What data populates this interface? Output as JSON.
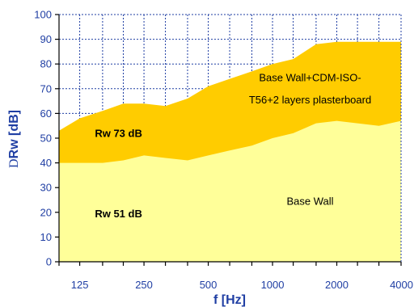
{
  "chart_data": {
    "type": "area",
    "xlabel": "f [Hz]",
    "ylabel_prefix": "D",
    "ylabel": "Rw [dB]",
    "ylim": [
      0,
      100
    ],
    "y_ticks": [
      0,
      10,
      20,
      30,
      40,
      50,
      60,
      70,
      80,
      90,
      100
    ],
    "x_scale": "log",
    "x_tick_labels": [
      "125",
      "250",
      "500",
      "1000",
      "2000",
      "4000"
    ],
    "x": [
      100,
      125,
      160,
      200,
      250,
      315,
      400,
      500,
      630,
      800,
      1000,
      1250,
      1600,
      2000,
      2500,
      3150,
      4000
    ],
    "series": [
      {
        "values": [
          40,
          40,
          40,
          41,
          43,
          42,
          41,
          43,
          45,
          47,
          50,
          52,
          56,
          57,
          56,
          55,
          57
        ],
        "color": "#ffff99"
      },
      {
        "values": [
          53,
          58,
          61,
          64,
          64,
          63,
          66,
          71,
          74,
          77,
          80,
          82,
          88,
          89,
          89,
          89,
          89
        ],
        "color": "#ffcc00"
      }
    ],
    "annotations": [
      {
        "text": "Base Wall+CDM-ISO-",
        "x": 1500,
        "y": 73
      },
      {
        "text": "T56+2 layers plasterboard",
        "x": 1500,
        "y": 64
      },
      {
        "text": "Rw 73 dB",
        "x": 190,
        "y": 50.5,
        "bold": true
      },
      {
        "text": "Rw 51 dB",
        "x": 190,
        "y": 18,
        "bold": true
      },
      {
        "text": "Base Wall",
        "x": 1500,
        "y": 23
      }
    ],
    "grid": true,
    "grid_style": "dashed",
    "legend": "none"
  },
  "colors": {
    "axis_text": "#1f3ea3",
    "grid": "#1f3ea3",
    "upper_fill": "#ffcc00",
    "lower_fill": "#ffff99"
  }
}
